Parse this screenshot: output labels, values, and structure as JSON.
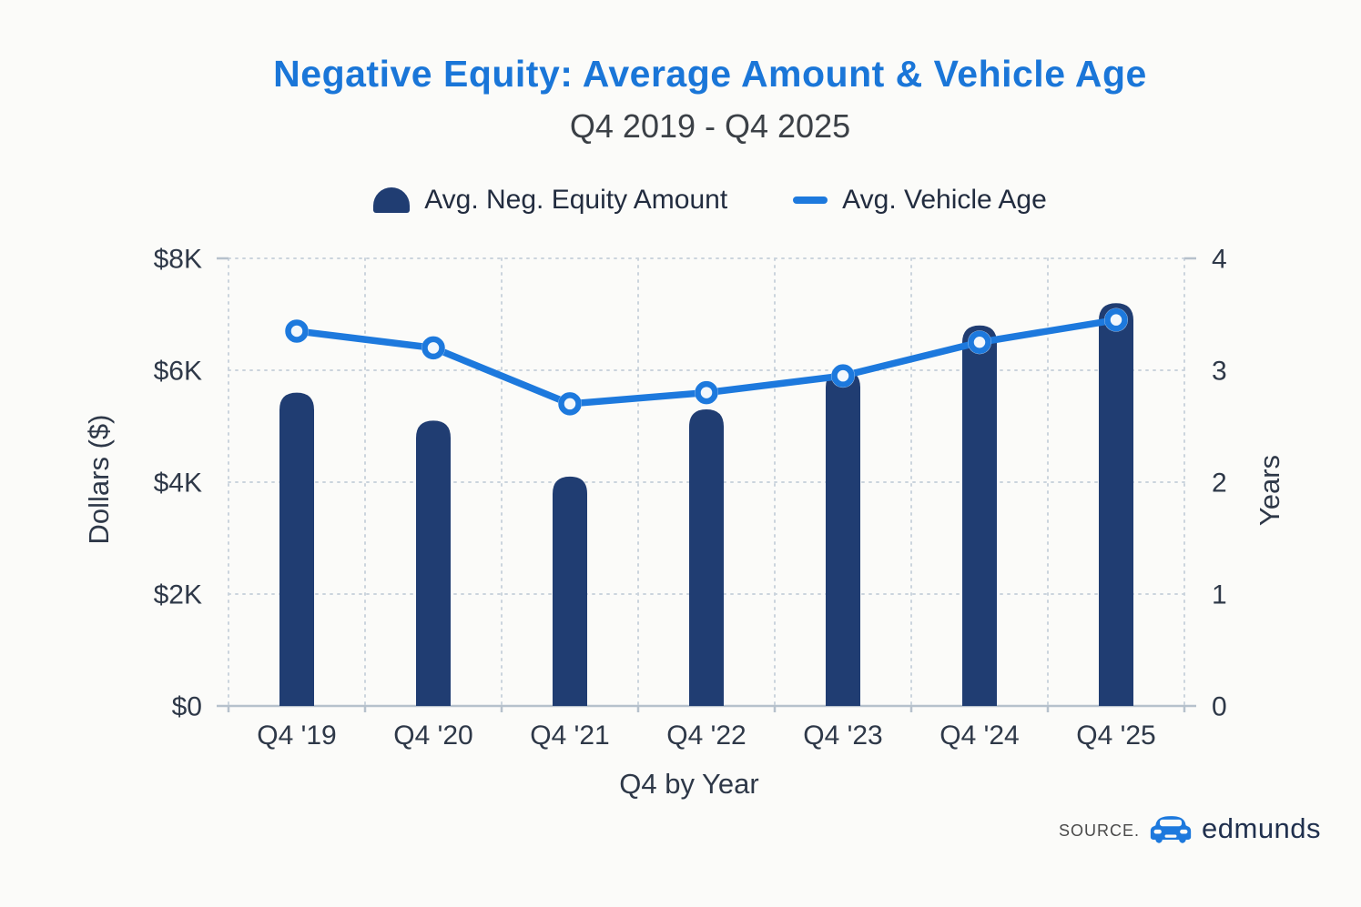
{
  "header": {
    "title": "Negative Equity: Average Amount & Vehicle Age",
    "subtitle": "Q4 2019 - Q4 2025"
  },
  "legend": {
    "bar_label": "Avg. Neg. Equity Amount",
    "line_label": "Avg. Vehicle Age"
  },
  "source": {
    "prefix": "SOURCE.",
    "brand": "edmunds",
    "icon": "car-icon"
  },
  "colors": {
    "title_blue": "#1a76d8",
    "bar_navy": "#203d72",
    "line_blue": "#1d79dd",
    "marker_fill": "#f2f7fc",
    "axis_text": "#2e3848",
    "grid": "#cbd4dd",
    "axis_line": "#b6c1cc",
    "background": "#fbfbf9"
  },
  "chart_data": {
    "type": "bar+line",
    "categories": [
      "Q4 '19",
      "Q4 '20",
      "Q4 '21",
      "Q4 '22",
      "Q4 '23",
      "Q4 '24",
      "Q4 '25"
    ],
    "series": [
      {
        "name": "Avg. Neg. Equity Amount",
        "type": "bar",
        "axis": "left",
        "unit": "dollars",
        "values": [
          5600,
          5100,
          4100,
          5300,
          6000,
          6800,
          7200
        ]
      },
      {
        "name": "Avg. Vehicle Age",
        "type": "line",
        "axis": "right",
        "unit": "years",
        "values": [
          3.35,
          3.2,
          2.7,
          2.8,
          2.95,
          3.25,
          3.45
        ]
      }
    ],
    "left_axis": {
      "label": "Dollars ($)",
      "tick_labels": [
        "$8K",
        "$6K",
        "$4K",
        "$2K",
        "$0"
      ],
      "range": [
        0,
        8000
      ]
    },
    "right_axis": {
      "label": "Years",
      "tick_labels": [
        "4",
        "3",
        "2",
        "1",
        "0"
      ],
      "range": [
        0,
        4
      ]
    },
    "x_axis": {
      "label": "Q4 by Year"
    },
    "grid": "dotted horizontal and vertical",
    "legend_position": "top"
  }
}
